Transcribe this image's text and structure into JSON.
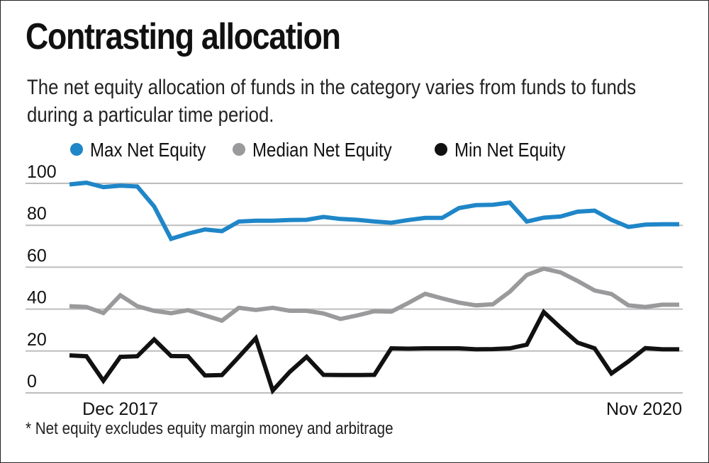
{
  "chart_data": {
    "type": "line",
    "title": "Contrasting allocation",
    "subtitle": "The net equity allocation of funds in the category varies from funds to funds during a particular time period.",
    "footnote": "* Net equity excludes equity margin money and arbitrage",
    "xlabel": "",
    "ylabel": "",
    "ylim": [
      0,
      100
    ],
    "yticks": [
      0,
      20,
      40,
      60,
      80,
      100
    ],
    "x_tick_labels": [
      {
        "index": 3,
        "label": "Dec 2017"
      },
      {
        "index": 36,
        "label": "Nov 2020"
      }
    ],
    "n_points": 37,
    "series": [
      {
        "name": "Max Net Equity",
        "color": "#1f86c8",
        "values": [
          99.5,
          100.3,
          98.2,
          98.9,
          98.5,
          89,
          73.5,
          76,
          78,
          77.2,
          81.8,
          82.2,
          82.2,
          82.5,
          82.6,
          84,
          83,
          82.6,
          81.8,
          81.2,
          82.5,
          83.5,
          83.5,
          88.2,
          89.6,
          89.8,
          90.8,
          81.8,
          83.6,
          84.2,
          86.5,
          87,
          82.6,
          79.2,
          80.3,
          80.5,
          80.5
        ]
      },
      {
        "name": "Median Net Equity",
        "color": "#9a9a9c",
        "values": [
          41.4,
          41,
          38.1,
          46.6,
          41.4,
          39.2,
          38,
          39.5,
          37,
          34.5,
          40.6,
          39.6,
          40.6,
          39.2,
          39.2,
          37.9,
          35.3,
          37,
          39,
          38.8,
          42.9,
          47.3,
          45.1,
          43.1,
          41.8,
          42.3,
          48.3,
          56.3,
          59.3,
          57.5,
          53.4,
          48.9,
          47.2,
          41.8,
          41,
          42.1,
          42.1
        ]
      },
      {
        "name": "Min Net Equity",
        "color": "#111111",
        "values": [
          17.9,
          17.5,
          5.8,
          17.2,
          17.5,
          25.5,
          17.6,
          17.5,
          8.3,
          8.5,
          17.2,
          26.1,
          1.1,
          10,
          17.2,
          8.6,
          8.5,
          8.5,
          8.6,
          21.3,
          21.1,
          21.3,
          21.3,
          21.3,
          20.8,
          20.9,
          21.3,
          23,
          38.6,
          31.1,
          24,
          21.3,
          9.3,
          15,
          21.4,
          20.8,
          20.8
        ]
      }
    ],
    "legend": "top",
    "grid": true
  }
}
